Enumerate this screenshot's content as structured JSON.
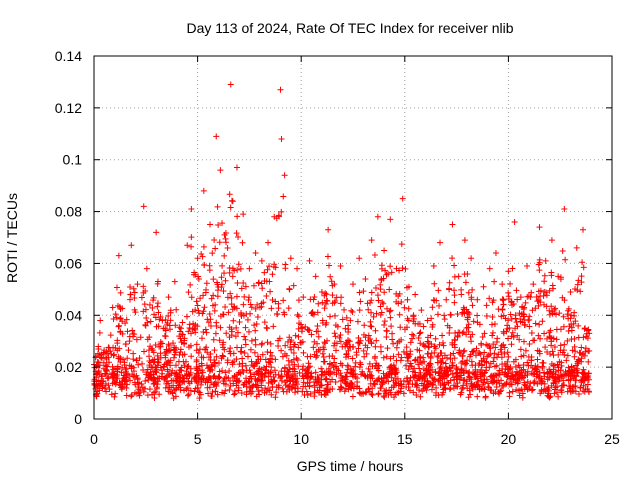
{
  "chart_data": {
    "type": "scatter",
    "title": "Day 113 of 2024, Rate Of TEC Index for receiver nlib",
    "xlabel": "GPS time / hours",
    "ylabel": "ROTI / TECUs",
    "xlim": [
      0,
      25
    ],
    "ylim": [
      0,
      0.14
    ],
    "xticks": [
      0,
      5,
      10,
      15,
      20,
      25
    ],
    "xtick_labels": [
      "0",
      "5",
      "10",
      "15",
      "20",
      "25"
    ],
    "yticks": [
      0,
      0.02,
      0.04,
      0.06,
      0.08,
      0.1,
      0.12,
      0.14
    ],
    "ytick_labels": [
      "0",
      "0.02",
      "0.04",
      "0.06",
      "0.08",
      "0.1",
      "0.12",
      "0.14"
    ],
    "grid": true,
    "marker": "+",
    "color": "#ff0000",
    "series": [
      {
        "name": "ROTI",
        "x": [
          0.0,
          0.3,
          0.6,
          0.9,
          1.2,
          1.5,
          1.8,
          2.1,
          2.4,
          2.55,
          2.7,
          3.0,
          3.3,
          3.6,
          3.9,
          4.2,
          4.5,
          4.7,
          5.0,
          5.3,
          5.6,
          5.9,
          6.1,
          6.3,
          6.6,
          6.7,
          6.9,
          7.2,
          7.5,
          7.8,
          8.1,
          8.4,
          8.7,
          9.0,
          9.05,
          9.2,
          9.5,
          9.8,
          10.1,
          10.4,
          10.7,
          11.0,
          11.3,
          11.6,
          11.9,
          12.2,
          12.5,
          12.8,
          13.1,
          13.4,
          13.7,
          14.0,
          14.3,
          14.6,
          14.9,
          15.2,
          15.5,
          15.8,
          16.1,
          16.4,
          16.7,
          17.0,
          17.3,
          17.6,
          17.9,
          18.2,
          18.5,
          18.8,
          19.1,
          19.4,
          19.7,
          20.0,
          20.3,
          20.6,
          20.9,
          21.2,
          21.5,
          21.8,
          22.1,
          22.4,
          22.7,
          23.0,
          23.3,
          23.6,
          23.9
        ],
        "values": [
          0.021,
          0.038,
          0.026,
          0.043,
          0.063,
          0.037,
          0.067,
          0.052,
          0.082,
          0.058,
          0.044,
          0.072,
          0.038,
          0.047,
          0.053,
          0.035,
          0.067,
          0.081,
          0.062,
          0.088,
          0.075,
          0.109,
          0.096,
          0.071,
          0.129,
          0.084,
          0.097,
          0.079,
          0.058,
          0.064,
          0.061,
          0.068,
          0.078,
          0.127,
          0.108,
          0.094,
          0.062,
          0.058,
          0.047,
          0.061,
          0.055,
          0.049,
          0.073,
          0.052,
          0.059,
          0.039,
          0.052,
          0.062,
          0.054,
          0.069,
          0.078,
          0.065,
          0.077,
          0.058,
          0.085,
          0.051,
          0.048,
          0.042,
          0.038,
          0.059,
          0.068,
          0.046,
          0.075,
          0.055,
          0.069,
          0.062,
          0.046,
          0.051,
          0.058,
          0.064,
          0.052,
          0.057,
          0.076,
          0.047,
          0.059,
          0.052,
          0.074,
          0.061,
          0.069,
          0.055,
          0.081,
          0.049,
          0.066,
          0.073,
          0.033
        ]
      }
    ]
  }
}
